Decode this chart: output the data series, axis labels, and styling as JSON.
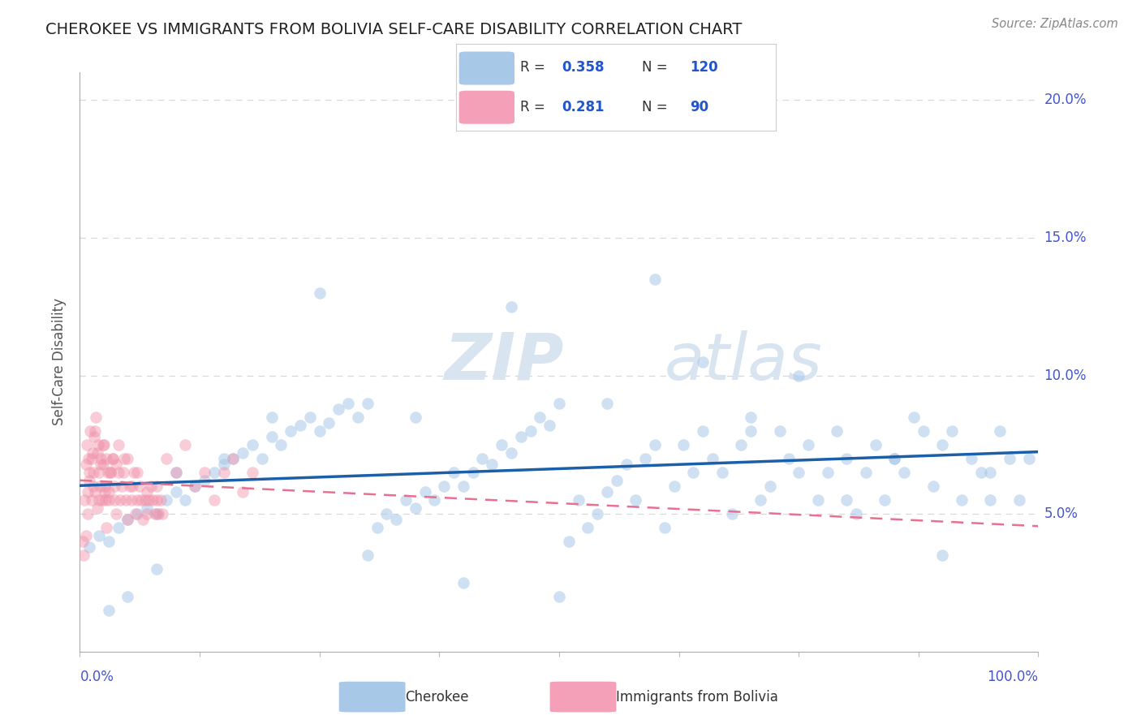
{
  "title": "CHEROKEE VS IMMIGRANTS FROM BOLIVIA SELF-CARE DISABILITY CORRELATION CHART",
  "source": "Source: ZipAtlas.com",
  "ylabel": "Self-Care Disability",
  "watermark_zip": "ZIP",
  "watermark_atlas": "atlas",
  "cherokee_R": 0.358,
  "cherokee_N": 120,
  "bolivia_R": 0.281,
  "bolivia_N": 90,
  "cherokee_scatter_color": "#a8c8e8",
  "bolivia_scatter_color": "#f090a8",
  "trendline_cherokee_color": "#1a5fa8",
  "trendline_bolivia_color": "#e87090",
  "background_color": "#ffffff",
  "axis_label_color": "#4455cc",
  "legend_R_color": "#2255cc",
  "ylabel_color": "#555555",
  "grid_color": "#d8d8d8",
  "cherokee_x": [
    1.0,
    2.0,
    3.0,
    4.0,
    5.0,
    6.0,
    7.0,
    8.0,
    9.0,
    10.0,
    11.0,
    12.0,
    13.0,
    14.0,
    15.0,
    16.0,
    17.0,
    18.0,
    19.0,
    20.0,
    21.0,
    22.0,
    23.0,
    24.0,
    25.0,
    26.0,
    27.0,
    28.0,
    29.0,
    30.0,
    31.0,
    32.0,
    33.0,
    34.0,
    35.0,
    36.0,
    37.0,
    38.0,
    39.0,
    40.0,
    41.0,
    42.0,
    43.0,
    44.0,
    45.0,
    46.0,
    47.0,
    48.0,
    49.0,
    50.0,
    51.0,
    52.0,
    53.0,
    54.0,
    55.0,
    56.0,
    57.0,
    58.0,
    59.0,
    60.0,
    61.0,
    62.0,
    63.0,
    64.0,
    65.0,
    66.0,
    67.0,
    68.0,
    69.0,
    70.0,
    71.0,
    72.0,
    73.0,
    74.0,
    75.0,
    76.0,
    77.0,
    78.0,
    79.0,
    80.0,
    81.0,
    82.0,
    83.0,
    84.0,
    85.0,
    86.0,
    87.0,
    88.0,
    89.0,
    90.0,
    91.0,
    92.0,
    93.0,
    94.0,
    95.0,
    96.0,
    97.0,
    98.0,
    99.0,
    50.0,
    25.0,
    30.0,
    35.0,
    40.0,
    45.0,
    55.0,
    60.0,
    65.0,
    70.0,
    75.0,
    80.0,
    85.0,
    90.0,
    95.0,
    20.0,
    15.0,
    10.0,
    5.0,
    3.0,
    8.0
  ],
  "cherokee_y": [
    3.8,
    4.2,
    4.0,
    4.5,
    4.8,
    5.0,
    5.2,
    5.0,
    5.5,
    5.8,
    5.5,
    6.0,
    6.2,
    6.5,
    6.8,
    7.0,
    7.2,
    7.5,
    7.0,
    7.8,
    7.5,
    8.0,
    8.2,
    8.5,
    8.0,
    8.3,
    8.8,
    9.0,
    8.5,
    9.0,
    4.5,
    5.0,
    4.8,
    5.5,
    5.2,
    5.8,
    5.5,
    6.0,
    6.5,
    6.0,
    6.5,
    7.0,
    6.8,
    7.5,
    7.2,
    7.8,
    8.0,
    8.5,
    8.2,
    9.0,
    4.0,
    5.5,
    4.5,
    5.0,
    5.8,
    6.2,
    6.8,
    5.5,
    7.0,
    7.5,
    4.5,
    6.0,
    7.5,
    6.5,
    8.0,
    7.0,
    6.5,
    5.0,
    7.5,
    8.5,
    5.5,
    6.0,
    8.0,
    7.0,
    6.5,
    7.5,
    5.5,
    6.5,
    8.0,
    7.0,
    5.0,
    6.5,
    7.5,
    5.5,
    7.0,
    6.5,
    8.5,
    8.0,
    6.0,
    7.5,
    8.0,
    5.5,
    7.0,
    6.5,
    5.5,
    8.0,
    7.0,
    5.5,
    7.0,
    2.0,
    13.0,
    3.5,
    8.5,
    2.5,
    12.5,
    9.0,
    13.5,
    10.5,
    8.0,
    10.0,
    5.5,
    7.0,
    3.5,
    6.5,
    8.5,
    7.0,
    6.5,
    2.0,
    1.5,
    3.0
  ],
  "bolivia_x": [
    0.3,
    0.5,
    0.6,
    0.7,
    0.8,
    0.9,
    1.0,
    1.1,
    1.2,
    1.3,
    1.4,
    1.5,
    1.6,
    1.7,
    1.8,
    1.9,
    2.0,
    2.1,
    2.2,
    2.3,
    2.4,
    2.5,
    2.6,
    2.7,
    2.8,
    2.9,
    3.0,
    3.2,
    3.4,
    3.6,
    3.8,
    4.0,
    4.5,
    5.0,
    5.5,
    6.0,
    7.0,
    8.0,
    9.0,
    10.0,
    11.0,
    12.0,
    13.0,
    14.0,
    15.0,
    16.0,
    17.0,
    18.0,
    0.4,
    0.6,
    0.8,
    1.0,
    1.2,
    1.4,
    1.6,
    1.8,
    2.0,
    2.2,
    2.4,
    2.6,
    2.8,
    3.0,
    3.2,
    3.4,
    3.6,
    3.8,
    4.0,
    4.2,
    4.4,
    4.6,
    4.8,
    5.0,
    5.2,
    5.4,
    5.6,
    5.8,
    6.0,
    6.2,
    6.4,
    6.6,
    6.8,
    7.0,
    7.2,
    7.4,
    7.6,
    7.8,
    8.0,
    8.2,
    8.4,
    8.6
  ],
  "bolivia_y": [
    4.0,
    5.5,
    6.8,
    7.5,
    5.0,
    7.0,
    6.5,
    8.0,
    5.5,
    7.2,
    6.0,
    7.8,
    5.8,
    8.5,
    5.2,
    7.5,
    6.5,
    6.0,
    7.0,
    5.5,
    6.8,
    7.5,
    6.0,
    5.5,
    7.0,
    6.5,
    5.8,
    6.5,
    7.0,
    5.5,
    6.8,
    7.5,
    6.5,
    7.0,
    6.0,
    6.5,
    5.8,
    6.0,
    7.0,
    6.5,
    7.5,
    6.0,
    6.5,
    5.5,
    6.5,
    7.0,
    5.8,
    6.5,
    3.5,
    4.2,
    5.8,
    6.2,
    7.0,
    6.5,
    8.0,
    7.2,
    5.5,
    6.8,
    7.5,
    5.8,
    4.5,
    5.5,
    6.5,
    7.0,
    6.0,
    5.0,
    6.5,
    5.5,
    6.0,
    7.0,
    5.5,
    4.8,
    6.0,
    5.5,
    6.5,
    5.0,
    5.5,
    6.0,
    5.5,
    4.8,
    5.5,
    5.0,
    5.5,
    6.0,
    5.5,
    5.0,
    5.5,
    5.0,
    5.5,
    5.0
  ]
}
